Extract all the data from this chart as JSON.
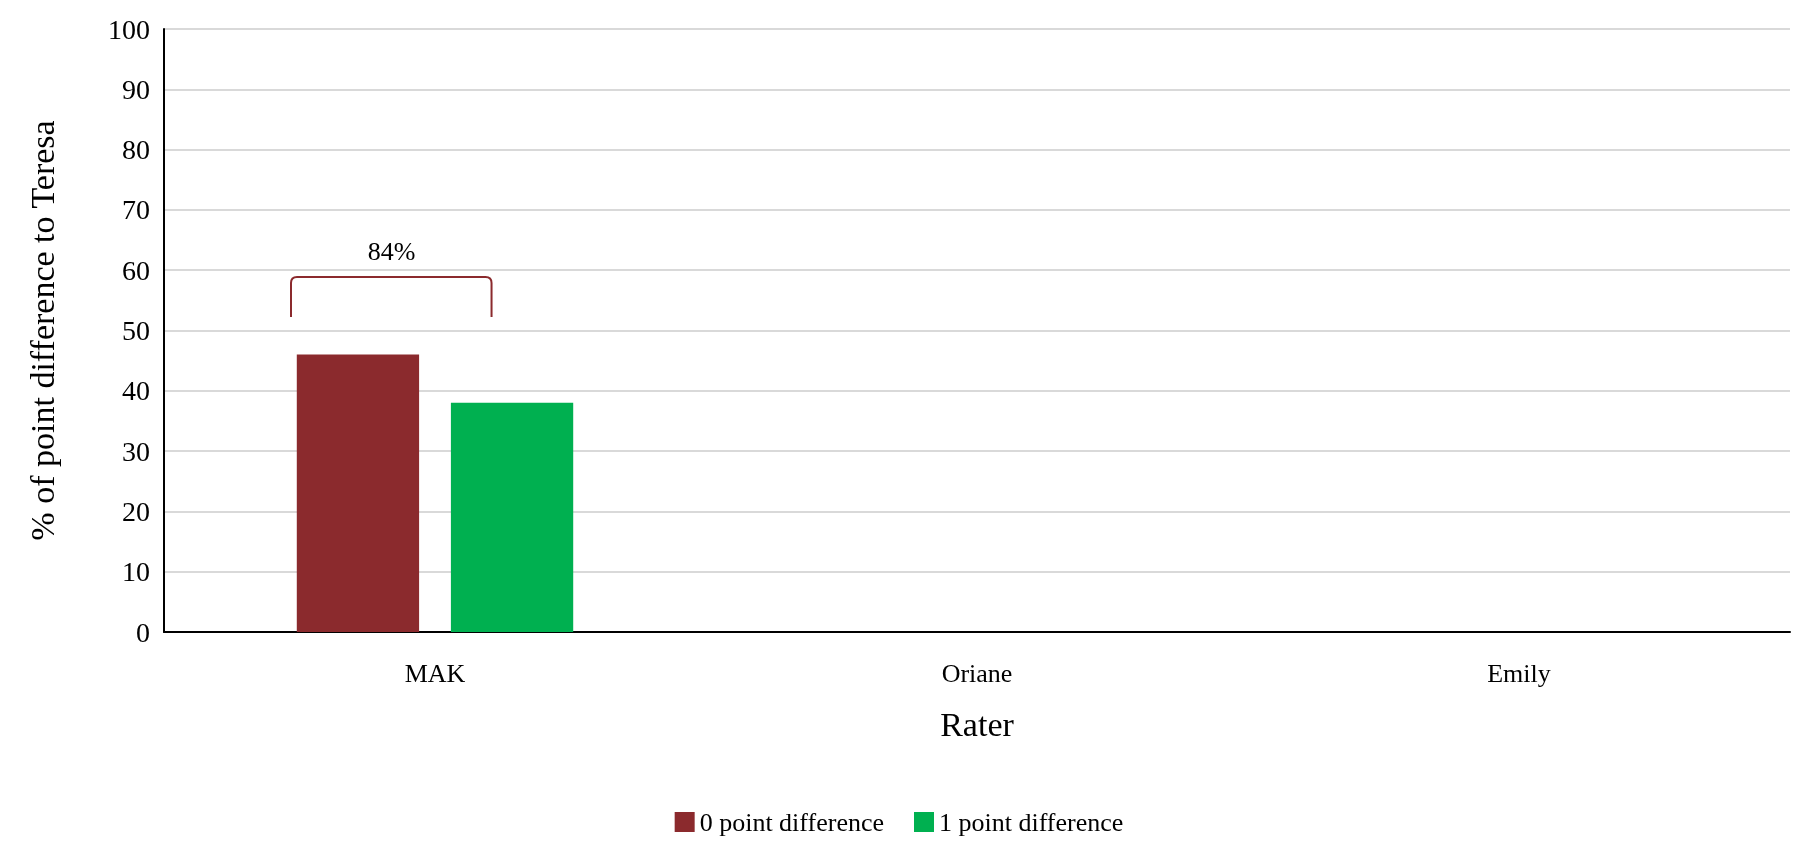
{
  "chart_data": {
    "type": "bar",
    "xlabel": "Rater",
    "ylabel": "% of point difference to Teresa",
    "categories": [
      "MAK",
      "Oriane",
      "Emily"
    ],
    "series": [
      {
        "name": "0 point difference",
        "color": "#8b2a2d",
        "values": [
          46,
          null,
          null
        ]
      },
      {
        "name": "1 point difference",
        "color": "#00b050",
        "values": [
          38,
          null,
          null
        ]
      }
    ],
    "ylim": [
      0,
      100
    ],
    "yticks": [
      0,
      10,
      20,
      30,
      40,
      50,
      60,
      70,
      80,
      90,
      100
    ],
    "grid": "y",
    "legend": "bottom",
    "annotations": [
      "84%"
    ]
  }
}
